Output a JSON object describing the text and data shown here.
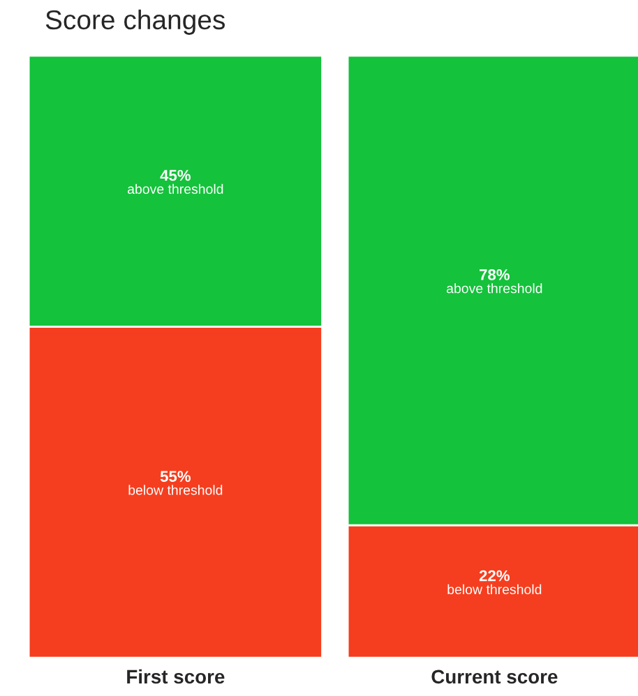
{
  "chart_data": {
    "type": "bar",
    "title": "Score changes",
    "stacked": true,
    "categories": [
      "First score",
      "Current score"
    ],
    "series": [
      {
        "name": "below threshold",
        "color": "#f53e1f",
        "values": [
          55,
          22
        ],
        "value_labels": [
          "55%",
          "22%"
        ]
      },
      {
        "name": "above threshold",
        "color": "#14c23b",
        "values": [
          45,
          78
        ],
        "value_labels": [
          "45%",
          "78%"
        ]
      }
    ]
  }
}
